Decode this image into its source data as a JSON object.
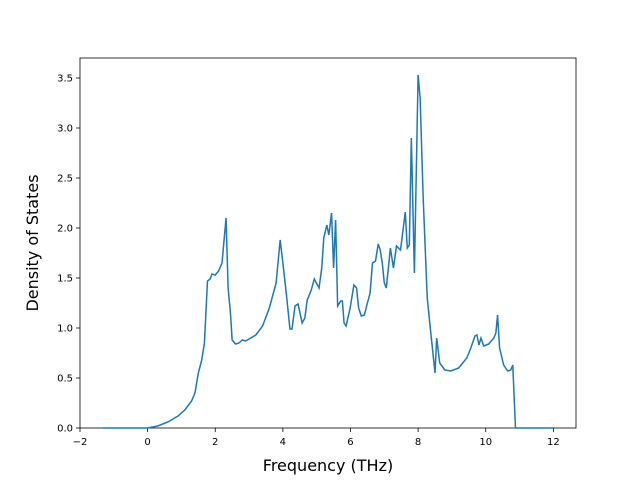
{
  "chart_data": {
    "type": "line",
    "xlabel": "Frequency (THz)",
    "ylabel": "Density of States",
    "xlim": [
      -2.0,
      12.67
    ],
    "ylim": [
      0,
      3.7
    ],
    "xticks": [
      {
        "value": -2,
        "label": "−2"
      },
      0,
      2,
      4,
      6,
      8,
      10,
      12
    ],
    "yticks": [
      {
        "value": 0,
        "label": "0.0"
      },
      0.5,
      {
        "value": 1,
        "label": "1.0"
      },
      1.5,
      {
        "value": 2,
        "label": "2.0"
      },
      2.5,
      {
        "value": 3,
        "label": "3.0"
      },
      3.5
    ],
    "grid": false,
    "series": [
      {
        "color": "#1f77b4",
        "x": [
          -1.33,
          0,
          0.3,
          0.6,
          0.9,
          1.1,
          1.3,
          1.4,
          1.5,
          1.6,
          1.68,
          1.77,
          1.85,
          1.9,
          2.0,
          2.1,
          2.2,
          2.32,
          2.38,
          2.45,
          2.5,
          2.6,
          2.7,
          2.8,
          2.9,
          3.0,
          3.2,
          3.4,
          3.6,
          3.8,
          3.92,
          4.0,
          4.1,
          4.21,
          4.27,
          4.36,
          4.45,
          4.57,
          4.65,
          4.72,
          4.84,
          4.93,
          5.07,
          5.15,
          5.21,
          5.3,
          5.36,
          5.44,
          5.5,
          5.56,
          5.62,
          5.71,
          5.76,
          5.81,
          5.87,
          5.99,
          6.1,
          6.18,
          6.24,
          6.32,
          6.41,
          6.5,
          6.58,
          6.65,
          6.74,
          6.82,
          6.88,
          6.94,
          7.0,
          7.06,
          7.18,
          7.27,
          7.36,
          7.48,
          7.62,
          7.68,
          7.74,
          7.8,
          7.89,
          8.0,
          8.06,
          8.15,
          8.27,
          8.36,
          8.5,
          8.55,
          8.64,
          8.79,
          8.97,
          9.2,
          9.44,
          9.56,
          9.68,
          9.74,
          9.8,
          9.86,
          9.94,
          10.09,
          10.24,
          10.3,
          10.35,
          10.41,
          10.53,
          10.65,
          10.74,
          10.8,
          10.88,
          12.0
        ],
        "values": [
          0,
          0,
          0.02,
          0.06,
          0.12,
          0.18,
          0.27,
          0.35,
          0.55,
          0.68,
          0.85,
          1.47,
          1.49,
          1.54,
          1.53,
          1.57,
          1.65,
          2.1,
          1.4,
          1.15,
          0.88,
          0.84,
          0.85,
          0.88,
          0.87,
          0.89,
          0.93,
          1.02,
          1.2,
          1.45,
          1.88,
          1.65,
          1.35,
          0.99,
          0.99,
          1.22,
          1.24,
          1.05,
          1.1,
          1.28,
          1.38,
          1.49,
          1.4,
          1.6,
          1.9,
          2.03,
          1.93,
          2.15,
          1.6,
          2.08,
          1.22,
          1.27,
          1.27,
          1.05,
          1.02,
          1.2,
          1.43,
          1.4,
          1.2,
          1.12,
          1.13,
          1.25,
          1.35,
          1.65,
          1.67,
          1.84,
          1.78,
          1.65,
          1.45,
          1.4,
          1.8,
          1.6,
          1.82,
          1.78,
          2.16,
          1.8,
          1.83,
          2.9,
          1.55,
          3.53,
          3.3,
          2.3,
          1.3,
          1.0,
          0.55,
          0.9,
          0.65,
          0.58,
          0.57,
          0.6,
          0.7,
          0.8,
          0.92,
          0.93,
          0.83,
          0.9,
          0.82,
          0.84,
          0.9,
          0.95,
          1.13,
          0.8,
          0.63,
          0.57,
          0.58,
          0.63,
          0,
          0
        ]
      }
    ]
  }
}
